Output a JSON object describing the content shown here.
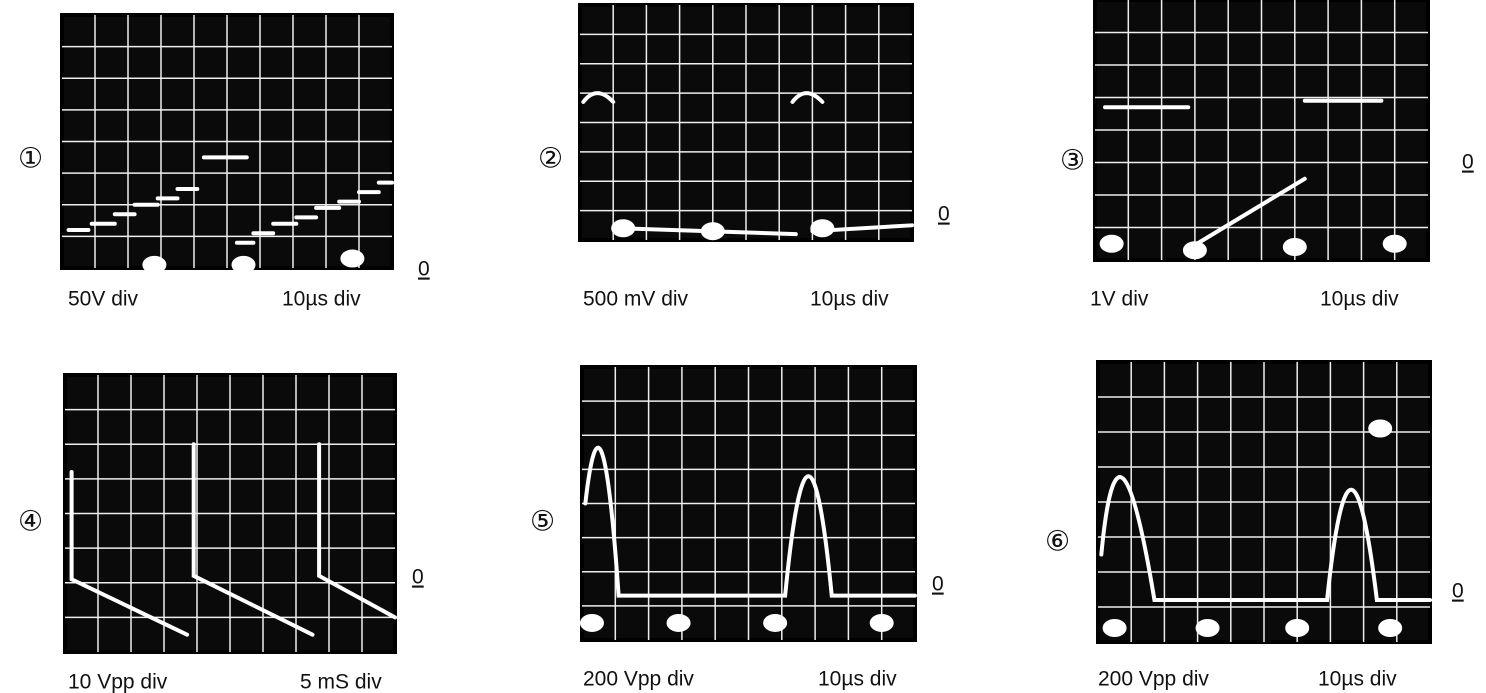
{
  "panels": [
    {
      "number": "①",
      "zero": "0",
      "vertical": "50V div",
      "horizontal": "10µs div"
    },
    {
      "number": "②",
      "zero": "0",
      "vertical": "500 mV div",
      "horizontal": "10µs div"
    },
    {
      "number": "③",
      "zero": "0",
      "vertical": "1V div",
      "horizontal": "10µs div"
    },
    {
      "number": "④",
      "zero": "0",
      "vertical": "10 Vpp div",
      "horizontal": "5 mS div"
    },
    {
      "number": "⑤",
      "zero": "0",
      "vertical": "200 Vpp div",
      "horizontal": "10µs div"
    },
    {
      "number": "⑥",
      "zero": "0",
      "vertical": "200 Vpp div",
      "horizontal": "10µs div"
    }
  ]
}
